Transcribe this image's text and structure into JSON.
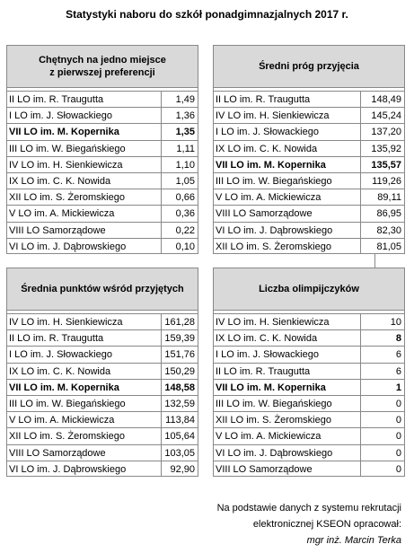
{
  "header": {
    "title": "Statystyki naboru do szkół ponadgimnazjalnych 2017 r."
  },
  "tables": [
    {
      "title": [
        "Chętnych na jedno miejsce",
        "z pierwszej preferencji"
      ],
      "rows": [
        {
          "name": "II LO im. R. Traugutta",
          "value": "1,49"
        },
        {
          "name": "I LO im. J. Słowackiego",
          "value": "1,36"
        },
        {
          "name": "VII LO im. M. Kopernika",
          "value": "1,35",
          "bold": true
        },
        {
          "name": "III LO im. W. Biegańskiego",
          "value": "1,11"
        },
        {
          "name": "IV LO im. H. Sienkiewicza",
          "value": "1,10"
        },
        {
          "name": "IX LO im. C. K. Nowida",
          "value": "1,05"
        },
        {
          "name": "XII LO im. S. Żeromskiego",
          "value": "0,66"
        },
        {
          "name": "V LO im. A. Mickiewicza",
          "value": "0,36"
        },
        {
          "name": "VIII LO Samorządowe",
          "value": "0,22"
        },
        {
          "name": "VI LO im. J. Dąbrowskiego",
          "value": "0,10"
        }
      ]
    },
    {
      "title": [
        "Średni próg przyjęcia"
      ],
      "rows": [
        {
          "name": "II LO im. R. Traugutta",
          "value": "148,49"
        },
        {
          "name": "IV LO im. H. Sienkiewicza",
          "value": "145,24"
        },
        {
          "name": "I LO im. J. Słowackiego",
          "value": "137,20"
        },
        {
          "name": "IX LO im. C. K. Nowida",
          "value": "135,92"
        },
        {
          "name": "VII LO im. M. Kopernika",
          "value": "135,57",
          "bold": true
        },
        {
          "name": "III LO im. W. Biegańskiego",
          "value": "119,26"
        },
        {
          "name": "V LO im. A. Mickiewicza",
          "value": "89,11"
        },
        {
          "name": "VIII LO Samorządowe",
          "value": "86,95"
        },
        {
          "name": "VI LO im. J. Dąbrowskiego",
          "value": "82,30"
        },
        {
          "name": "XII LO im. S. Żeromskiego",
          "value": "81,05"
        }
      ]
    },
    {
      "title": [
        "Średnia punktów wśród przyjętych"
      ],
      "rows": [
        {
          "name": "IV LO im. H. Sienkiewicza",
          "value": "161,28"
        },
        {
          "name": "II LO im. R. Traugutta",
          "value": "159,39"
        },
        {
          "name": "I LO im. J. Słowackiego",
          "value": "151,76"
        },
        {
          "name": "IX LO im. C. K. Nowida",
          "value": "150,29"
        },
        {
          "name": "VII LO im. M. Kopernika",
          "value": "148,58",
          "bold": true
        },
        {
          "name": "III LO im. W. Biegańskiego",
          "value": "132,59"
        },
        {
          "name": "V LO im. A. Mickiewicza",
          "value": "113,84"
        },
        {
          "name": "XII LO im. S. Żeromskiego",
          "value": "105,64"
        },
        {
          "name": "VIII LO Samorządowe",
          "value": "103,05"
        },
        {
          "name": "VI LO im. J. Dąbrowskiego",
          "value": "92,90"
        }
      ]
    },
    {
      "title": [
        "Liczba olimpijczyków"
      ],
      "rows": [
        {
          "name": "IV LO im. H. Sienkiewicza",
          "value": "10"
        },
        {
          "name": "IX LO im. C. K. Nowida",
          "value": "8",
          "bold_value": true
        },
        {
          "name": "I LO im. J. Słowackiego",
          "value": "6"
        },
        {
          "name": "II LO im. R. Traugutta",
          "value": "6"
        },
        {
          "name": "VII LO im. M. Kopernika",
          "value": "1",
          "bold": true
        },
        {
          "name": "III LO im. W. Biegańskiego",
          "value": "0"
        },
        {
          "name": "XII LO im. S. Żeromskiego",
          "value": "0"
        },
        {
          "name": "V LO im. A. Mickiewicza",
          "value": "0"
        },
        {
          "name": "VI LO im. J. Dąbrowskiego",
          "value": "0"
        },
        {
          "name": "VIII LO Samorządowe",
          "value": "0"
        }
      ]
    }
  ],
  "footer": {
    "lines": [
      "Na podstawie danych z systemu rekrutacji",
      "elektronicznej KSEON opracował:",
      "mgr inż. Marcin Terka"
    ]
  }
}
